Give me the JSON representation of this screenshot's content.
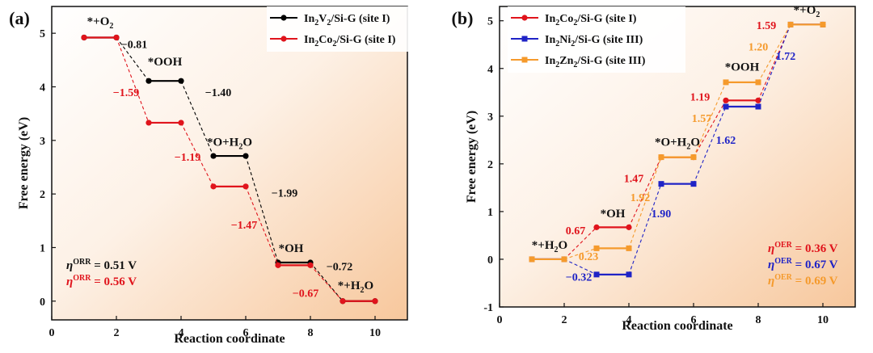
{
  "chart_data": [
    {
      "panel": "(a)",
      "type": "line",
      "xlabel": "Reaction coordinate",
      "ylabel": "Free energy (eV)",
      "xlim": [
        0,
        11
      ],
      "ylim": [
        -0.35,
        5.5
      ],
      "xticks": [
        0,
        2,
        4,
        6,
        8,
        10
      ],
      "yticks": [
        0,
        1,
        2,
        3,
        4,
        5
      ],
      "legend_position": "top-right",
      "series": [
        {
          "legend_parts": [
            [
              "In",
              "n"
            ],
            [
              "2",
              "s"
            ],
            [
              "V",
              "n"
            ],
            [
              "2",
              "s"
            ],
            [
              "/Si-G (site I)",
              "n"
            ]
          ],
          "color": "#000000",
          "marker": "circle",
          "levels": [
            4.92,
            4.11,
            2.71,
            0.72,
            0.0
          ]
        },
        {
          "legend_parts": [
            [
              "In",
              "n"
            ],
            [
              "2",
              "s"
            ],
            [
              "Co",
              "n"
            ],
            [
              "2",
              "s"
            ],
            [
              "/Si-G (site I)",
              "n"
            ]
          ],
          "color": "#e0141c",
          "marker": "circle",
          "levels": [
            4.92,
            3.33,
            2.14,
            0.67,
            0.0
          ]
        }
      ],
      "states": [
        {
          "parts": [
            [
              "*+O",
              "n"
            ],
            [
              "2",
              "s"
            ]
          ],
          "x": 1.5,
          "y": 5.15
        },
        {
          "parts": [
            [
              "*OOH",
              "n"
            ]
          ],
          "x": 3.5,
          "y": 4.4
        },
        {
          "parts": [
            [
              "*O+H",
              "n"
            ],
            [
              "2",
              "s"
            ],
            [
              "O",
              "n"
            ]
          ],
          "x": 5.5,
          "y": 2.9
        },
        {
          "parts": [
            [
              "*OH",
              "n"
            ]
          ],
          "x": 7.4,
          "y": 0.92
        },
        {
          "parts": [
            [
              "*+H",
              "n"
            ],
            [
              "2",
              "s"
            ],
            [
              "O",
              "n"
            ]
          ],
          "x": 9.4,
          "y": 0.22
        }
      ],
      "annotations": [
        {
          "text": "−0.81",
          "x": 2.55,
          "y": 4.72,
          "color": "#111111"
        },
        {
          "text": "−1.59",
          "x": 2.3,
          "y": 3.83,
          "color": "#e0141c"
        },
        {
          "text": "−1.40",
          "x": 5.15,
          "y": 3.83,
          "color": "#111111"
        },
        {
          "text": "−1.19",
          "x": 4.2,
          "y": 2.62,
          "color": "#e0141c"
        },
        {
          "text": "−1.99",
          "x": 7.2,
          "y": 1.95,
          "color": "#111111"
        },
        {
          "text": "−1.47",
          "x": 5.95,
          "y": 1.35,
          "color": "#e0141c"
        },
        {
          "text": "−0.72",
          "x": 8.9,
          "y": 0.58,
          "color": "#111111"
        },
        {
          "text": "−0.67",
          "x": 7.85,
          "y": 0.08,
          "color": "#e0141c"
        }
      ],
      "eta": [
        {
          "pre": "η",
          "sup": "ORR",
          "post": " = 0.51 V",
          "color": "#111111"
        },
        {
          "pre": "η",
          "sup": "ORR",
          "post": " = 0.56 V",
          "color": "#e0141c"
        }
      ]
    },
    {
      "panel": "(b)",
      "type": "line",
      "xlabel": "Reaction coordinate",
      "ylabel": "Free energy (eV)",
      "xlim": [
        0,
        11
      ],
      "ylim": [
        -1,
        5.3
      ],
      "xticks": [
        0,
        2,
        4,
        6,
        8,
        10
      ],
      "yticks": [
        -1,
        0,
        1,
        2,
        3,
        4,
        5
      ],
      "legend_position": "top-left",
      "series": [
        {
          "legend_parts": [
            [
              "In",
              "n"
            ],
            [
              "2",
              "s"
            ],
            [
              "Co",
              "n"
            ],
            [
              "2",
              "s"
            ],
            [
              "/Si-G (site I)",
              "n"
            ]
          ],
          "color": "#e0141c",
          "marker": "circle",
          "levels": [
            0.0,
            0.67,
            2.14,
            3.33,
            4.92
          ]
        },
        {
          "legend_parts": [
            [
              "In",
              "n"
            ],
            [
              "2",
              "s"
            ],
            [
              "Ni",
              "n"
            ],
            [
              "2",
              "s"
            ],
            [
              "/Si-G (site III)",
              "n"
            ]
          ],
          "color": "#1f23c6",
          "marker": "square",
          "levels": [
            0.0,
            -0.32,
            1.58,
            3.2,
            4.92
          ]
        },
        {
          "legend_parts": [
            [
              "In",
              "n"
            ],
            [
              "2",
              "s"
            ],
            [
              "Zn",
              "n"
            ],
            [
              "2",
              "s"
            ],
            [
              "/Si-G (site III)",
              "n"
            ]
          ],
          "color": "#f59a2c",
          "marker": "square",
          "levels": [
            0.0,
            0.23,
            2.14,
            3.71,
            4.92
          ]
        }
      ],
      "states": [
        {
          "parts": [
            [
              "*+H",
              "n"
            ],
            [
              "2",
              "s"
            ],
            [
              "O",
              "n"
            ]
          ],
          "x": 1.55,
          "y": 0.22
        },
        {
          "parts": [
            [
              "*OH",
              "n"
            ]
          ],
          "x": 3.5,
          "y": 0.88
        },
        {
          "parts": [
            [
              "*O+H",
              "n"
            ],
            [
              "2",
              "s"
            ],
            [
              "O",
              "n"
            ]
          ],
          "x": 5.5,
          "y": 2.38
        },
        {
          "parts": [
            [
              "*OOH",
              "n"
            ]
          ],
          "x": 7.5,
          "y": 3.95
        },
        {
          "parts": [
            [
              "*+O",
              "n"
            ],
            [
              "2",
              "s"
            ]
          ],
          "x": 9.5,
          "y": 5.15
        }
      ],
      "annotations": [
        {
          "text": "0.67",
          "x": 2.35,
          "y": 0.52,
          "color": "#e0141c"
        },
        {
          "text": "0.23",
          "x": 2.75,
          "y": -0.02,
          "color": "#f59a2c"
        },
        {
          "text": "−0.32",
          "x": 2.45,
          "y": -0.45,
          "color": "#1f23c6"
        },
        {
          "text": "1.47",
          "x": 4.15,
          "y": 1.62,
          "color": "#e0141c"
        },
        {
          "text": "1.92",
          "x": 4.35,
          "y": 1.22,
          "color": "#f59a2c"
        },
        {
          "text": "1.90",
          "x": 5.0,
          "y": 0.88,
          "color": "#1f23c6"
        },
        {
          "text": "1.19",
          "x": 6.2,
          "y": 3.33,
          "color": "#e0141c"
        },
        {
          "text": "1.57",
          "x": 6.25,
          "y": 2.88,
          "color": "#f59a2c"
        },
        {
          "text": "1.62",
          "x": 7.0,
          "y": 2.42,
          "color": "#1f23c6"
        },
        {
          "text": "1.59",
          "x": 8.25,
          "y": 4.83,
          "color": "#e0141c"
        },
        {
          "text": "1.20",
          "x": 8.0,
          "y": 4.38,
          "color": "#f59a2c"
        },
        {
          "text": "1.72",
          "x": 8.85,
          "y": 4.18,
          "color": "#1f23c6"
        }
      ],
      "eta": [
        {
          "pre": "η",
          "sup": "OER",
          "post": " = 0.36 V",
          "color": "#e0141c"
        },
        {
          "pre": "η",
          "sup": "OER",
          "post": " = 0.67 V",
          "color": "#1f23c6"
        },
        {
          "pre": "η",
          "sup": "OER",
          "post": " = 0.69 V",
          "color": "#f59a2c"
        }
      ]
    }
  ]
}
